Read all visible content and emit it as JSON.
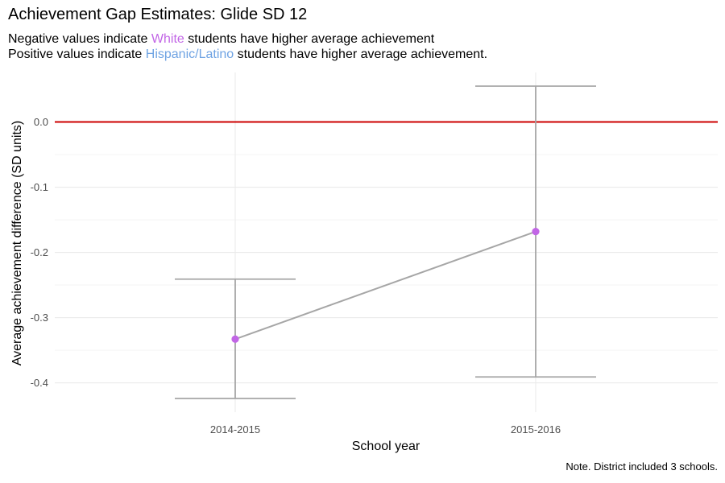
{
  "title": "Achievement Gap Estimates: Glide SD 12",
  "subtitle": {
    "line1": {
      "pre": "Negative values indicate",
      "highlight": "White",
      "post": "students have higher average achievement"
    },
    "line2": {
      "pre": "Positive values indicate",
      "highlight": "Hispanic/Latino",
      "post": "students have higher average achievement."
    }
  },
  "caption": "Note. District included 3 schools.",
  "colors": {
    "white_group": "#c266e6",
    "hispanic_group": "#6fa3e3",
    "reference_line": "#cc0000",
    "point": "#c266e6",
    "line_and_errorbars": "#a6a6a6",
    "grid": "#ebebeb"
  },
  "chart_data": {
    "type": "line",
    "xlabel": "School year",
    "ylabel": "Average achievement difference (SD units)",
    "categories": [
      "2014-2015",
      "2015-2016"
    ],
    "values": [
      -0.333,
      -0.168
    ],
    "error_low": [
      -0.424,
      -0.391
    ],
    "error_high": [
      -0.241,
      0.055
    ],
    "reference_line": 0.0,
    "ylim": [
      -0.445,
      0.076
    ],
    "yticks": [
      0.0,
      -0.1,
      -0.2,
      -0.3,
      -0.4
    ],
    "ytick_labels": [
      "0.0",
      "-0.1",
      "-0.2",
      "-0.3",
      "-0.4"
    ],
    "grid": true
  }
}
